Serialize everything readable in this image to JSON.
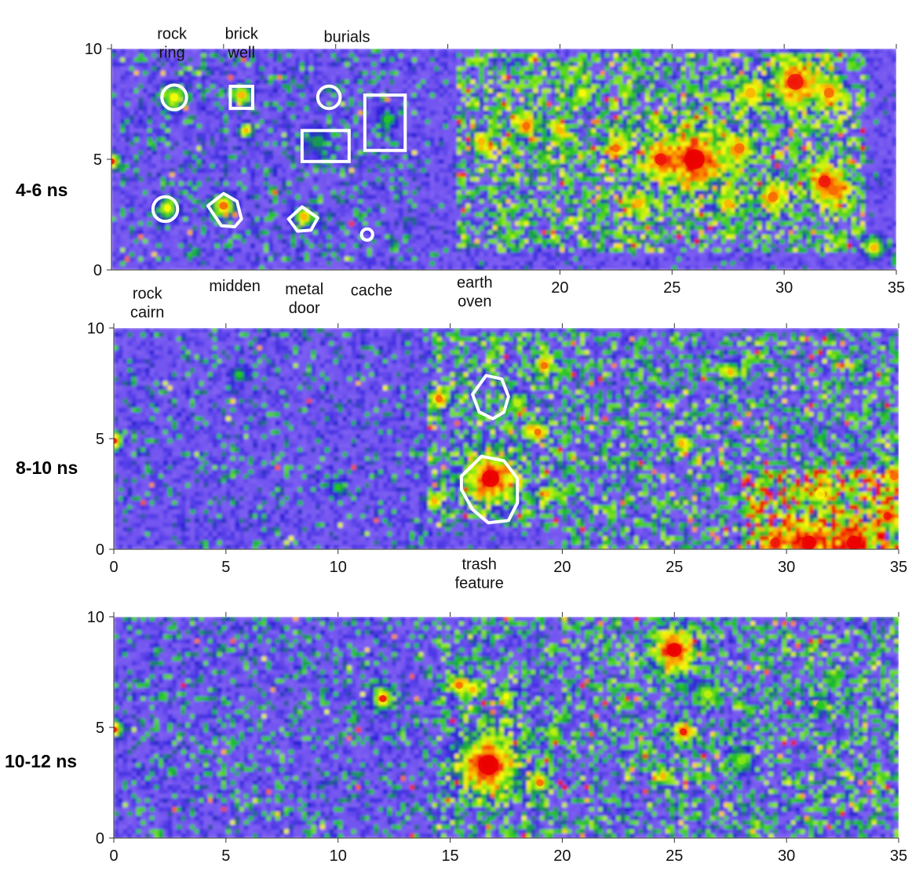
{
  "chart_data": [
    {
      "type": "heatmap",
      "depth_label": "4-6 ns",
      "x_range": [
        0,
        35
      ],
      "y_range": [
        0,
        10
      ],
      "x_ticks": [
        "20",
        "25",
        "30",
        "35"
      ],
      "x_tick_values": [
        20,
        25,
        30,
        35
      ],
      "y_ticks": [
        "10",
        "5",
        "0"
      ],
      "y_tick_values": [
        10,
        5,
        0
      ],
      "annotations": [
        {
          "lines": [
            "rock",
            "ring"
          ],
          "x": 2.7,
          "y": 10.45
        },
        {
          "lines": [
            "brick",
            "well"
          ],
          "x": 5.8,
          "y": 10.45
        },
        {
          "lines": [
            "burials"
          ],
          "x": 10.5,
          "y": 10.3
        },
        {
          "lines": [
            "rock",
            "cairn"
          ],
          "x": 1.6,
          "y": -1.3
        },
        {
          "lines": [
            "midden"
          ],
          "x": 5.5,
          "y": -0.95
        },
        {
          "lines": [
            "metal",
            "door"
          ],
          "x": 8.6,
          "y": -1.1
        },
        {
          "lines": [
            "cache"
          ],
          "x": 11.6,
          "y": -1.15
        },
        {
          "lines": [
            "earth",
            "oven"
          ],
          "x": 16.2,
          "y": -0.8
        }
      ],
      "outlines": [
        {
          "shape": "circle",
          "cx": 2.8,
          "cy": 7.8,
          "r": 0.55
        },
        {
          "shape": "rect",
          "x0": 5.3,
          "y0": 7.3,
          "x1": 6.3,
          "y1": 8.3
        },
        {
          "shape": "circle",
          "cx": 9.7,
          "cy": 7.8,
          "r": 0.5
        },
        {
          "shape": "rect",
          "x0": 8.5,
          "y0": 4.9,
          "x1": 10.6,
          "y1": 6.3
        },
        {
          "shape": "rect",
          "x0": 11.3,
          "y0": 5.4,
          "x1": 13.1,
          "y1": 7.9
        },
        {
          "shape": "circle",
          "cx": 2.4,
          "cy": 2.75,
          "r": 0.55
        },
        {
          "shape": "polygon",
          "points": [
            [
              4.3,
              2.9
            ],
            [
              5.0,
              3.45
            ],
            [
              5.6,
              3.1
            ],
            [
              5.8,
              2.3
            ],
            [
              5.5,
              1.95
            ],
            [
              4.9,
              2.0
            ]
          ]
        },
        {
          "shape": "polygon",
          "points": [
            [
              7.9,
              2.3
            ],
            [
              8.5,
              2.85
            ],
            [
              9.2,
              2.35
            ],
            [
              8.9,
              1.8
            ],
            [
              8.3,
              1.75
            ]
          ]
        },
        {
          "shape": "circle",
          "cx": 11.4,
          "cy": 1.6,
          "r": 0.25
        }
      ],
      "hot_spots": [
        {
          "x": 2.8,
          "y": 7.8,
          "level": 0.8,
          "r": 0.4
        },
        {
          "x": 5.8,
          "y": 7.9,
          "level": 0.85,
          "r": 0.35
        },
        {
          "x": 2.5,
          "y": 2.8,
          "level": 0.8,
          "r": 0.35
        },
        {
          "x": 5.0,
          "y": 2.9,
          "level": 0.9,
          "r": 0.4
        },
        {
          "x": 8.6,
          "y": 2.4,
          "level": 0.85,
          "r": 0.35
        },
        {
          "x": 12.3,
          "y": 6.8,
          "level": 0.6,
          "r": 0.35
        },
        {
          "x": 9.2,
          "y": 5.8,
          "level": 0.55,
          "r": 0.5
        },
        {
          "x": 6.0,
          "y": 6.3,
          "level": 0.85,
          "r": 0.25
        },
        {
          "x": 0.0,
          "y": 4.9,
          "level": 0.95,
          "r": 0.3
        },
        {
          "x": 18.5,
          "y": 6.5,
          "level": 0.9,
          "r": 0.4
        },
        {
          "x": 20.0,
          "y": 6.3,
          "level": 0.85,
          "r": 0.35
        },
        {
          "x": 16.5,
          "y": 5.8,
          "level": 0.85,
          "r": 0.35
        },
        {
          "x": 26.0,
          "y": 5.0,
          "level": 1.0,
          "r": 1.0
        },
        {
          "x": 24.5,
          "y": 5.0,
          "level": 0.95,
          "r": 0.6
        },
        {
          "x": 30.5,
          "y": 8.5,
          "level": 0.95,
          "r": 0.8
        },
        {
          "x": 32.0,
          "y": 8.0,
          "level": 0.9,
          "r": 0.5
        },
        {
          "x": 28.5,
          "y": 8.0,
          "level": 0.85,
          "r": 0.5
        },
        {
          "x": 31.8,
          "y": 4.0,
          "level": 0.95,
          "r": 0.6
        },
        {
          "x": 32.2,
          "y": 3.6,
          "level": 0.9,
          "r": 0.5
        },
        {
          "x": 29.5,
          "y": 3.3,
          "level": 0.9,
          "r": 0.5
        },
        {
          "x": 22.5,
          "y": 5.5,
          "level": 0.9,
          "r": 0.4
        },
        {
          "x": 28.0,
          "y": 5.5,
          "level": 0.9,
          "r": 0.5
        },
        {
          "x": 23.5,
          "y": 3.0,
          "level": 0.85,
          "r": 0.4
        },
        {
          "x": 27.5,
          "y": 3.0,
          "level": 0.85,
          "r": 0.4
        },
        {
          "x": 34.0,
          "y": 1.0,
          "level": 0.85,
          "r": 0.35
        },
        {
          "x": 21.0,
          "y": 8.0,
          "level": 0.8,
          "r": 0.35
        }
      ],
      "warm_zones": [
        {
          "x0": 15.5,
          "x1": 33.5,
          "y0": 0.8,
          "y1": 9.8,
          "density": 0.55
        },
        {
          "x0": 0.5,
          "x1": 13.5,
          "y0": 0.5,
          "y1": 9.8,
          "density": 0.15
        }
      ]
    },
    {
      "type": "heatmap",
      "depth_label": "8-10 ns",
      "x_range": [
        0,
        35
      ],
      "y_range": [
        0,
        10
      ],
      "x_ticks": [
        "0",
        "5",
        "10",
        "20",
        "25",
        "30",
        "35"
      ],
      "x_tick_values": [
        0,
        5,
        10,
        20,
        25,
        30,
        35
      ],
      "y_ticks": [
        "10",
        "5",
        "0"
      ],
      "y_tick_values": [
        10,
        5,
        0
      ],
      "annotations": [
        {
          "lines": [
            "trash",
            "feature"
          ],
          "x": 16.3,
          "y": -0.9
        }
      ],
      "outlines": [
        {
          "shape": "polygon",
          "points": [
            [
              16.0,
              7.0
            ],
            [
              16.6,
              7.85
            ],
            [
              17.3,
              7.7
            ],
            [
              17.6,
              6.9
            ],
            [
              17.4,
              6.2
            ],
            [
              16.9,
              5.9
            ],
            [
              16.3,
              6.2
            ]
          ]
        },
        {
          "shape": "polygon",
          "points": [
            [
              15.5,
              3.3
            ],
            [
              16.4,
              4.2
            ],
            [
              17.4,
              4.0
            ],
            [
              18.0,
              3.2
            ],
            [
              18.0,
              2.1
            ],
            [
              17.6,
              1.3
            ],
            [
              16.7,
              1.2
            ],
            [
              16.0,
              1.8
            ],
            [
              15.5,
              2.7
            ]
          ]
        }
      ],
      "hot_spots": [
        {
          "x": 16.8,
          "y": 3.2,
          "level": 1.0,
          "r": 0.85
        },
        {
          "x": 14.5,
          "y": 6.8,
          "level": 0.9,
          "r": 0.35
        },
        {
          "x": 18.9,
          "y": 5.3,
          "level": 0.9,
          "r": 0.35
        },
        {
          "x": 19.2,
          "y": 8.3,
          "level": 0.9,
          "r": 0.35
        },
        {
          "x": 18.0,
          "y": 6.6,
          "level": 0.75,
          "r": 0.35
        },
        {
          "x": 19.3,
          "y": 2.5,
          "level": 0.85,
          "r": 0.3
        },
        {
          "x": 14.3,
          "y": 2.2,
          "level": 0.85,
          "r": 0.3
        },
        {
          "x": 25.3,
          "y": 4.8,
          "level": 0.85,
          "r": 0.3
        },
        {
          "x": 27.5,
          "y": 8.0,
          "level": 0.85,
          "r": 0.3
        },
        {
          "x": 0.0,
          "y": 4.9,
          "level": 0.95,
          "r": 0.3
        },
        {
          "x": 31.0,
          "y": 0.3,
          "level": 1.0,
          "r": 0.7
        },
        {
          "x": 33.0,
          "y": 0.3,
          "level": 1.0,
          "r": 0.7
        },
        {
          "x": 29.5,
          "y": 0.3,
          "level": 0.95,
          "r": 0.5
        },
        {
          "x": 34.5,
          "y": 1.5,
          "level": 0.95,
          "r": 0.4
        },
        {
          "x": 34.8,
          "y": 3.3,
          "level": 0.9,
          "r": 0.4
        },
        {
          "x": 31.5,
          "y": 2.5,
          "level": 0.8,
          "r": 0.5
        },
        {
          "x": 5.6,
          "y": 7.9,
          "level": 0.6,
          "r": 0.3
        },
        {
          "x": 10.0,
          "y": 2.8,
          "level": 0.6,
          "r": 0.3
        }
      ],
      "warm_zones": [
        {
          "x0": 14.0,
          "x1": 20.0,
          "y0": 1.0,
          "y1": 9.8,
          "density": 0.45
        },
        {
          "x0": 20.0,
          "x1": 35.0,
          "y0": 0.0,
          "y1": 9.8,
          "density": 0.4
        },
        {
          "x0": 28.0,
          "x1": 35.0,
          "y0": 0.0,
          "y1": 3.5,
          "density": 0.7
        },
        {
          "x0": 0.5,
          "x1": 14.0,
          "y0": 0.0,
          "y1": 10.0,
          "density": 0.1
        }
      ]
    },
    {
      "type": "heatmap",
      "depth_label": "10-12 ns",
      "x_range": [
        0,
        35
      ],
      "y_range": [
        0,
        10
      ],
      "x_ticks": [
        "0",
        "5",
        "10",
        "15",
        "20",
        "25",
        "30",
        "35"
      ],
      "x_tick_values": [
        0,
        5,
        10,
        15,
        20,
        25,
        30,
        35
      ],
      "y_ticks": [
        "10",
        "5",
        "0"
      ],
      "y_tick_values": [
        10,
        5,
        0
      ],
      "annotations": [],
      "outlines": [],
      "hot_spots": [
        {
          "x": 16.7,
          "y": 3.3,
          "level": 1.0,
          "r": 1.0
        },
        {
          "x": 25.0,
          "y": 8.5,
          "level": 1.0,
          "r": 0.7
        },
        {
          "x": 12.0,
          "y": 6.3,
          "level": 0.95,
          "r": 0.35
        },
        {
          "x": 15.4,
          "y": 6.9,
          "level": 0.9,
          "r": 0.35
        },
        {
          "x": 16.0,
          "y": 6.7,
          "level": 0.85,
          "r": 0.3
        },
        {
          "x": 17.5,
          "y": 6.4,
          "level": 0.8,
          "r": 0.3
        },
        {
          "x": 19.0,
          "y": 2.5,
          "level": 0.9,
          "r": 0.35
        },
        {
          "x": 25.4,
          "y": 4.8,
          "level": 0.95,
          "r": 0.35
        },
        {
          "x": 24.5,
          "y": 2.8,
          "level": 0.85,
          "r": 0.3
        },
        {
          "x": 26.5,
          "y": 6.5,
          "level": 0.75,
          "r": 0.4
        },
        {
          "x": 28.0,
          "y": 3.5,
          "level": 0.7,
          "r": 0.4
        },
        {
          "x": 0.0,
          "y": 4.9,
          "level": 0.95,
          "r": 0.3
        },
        {
          "x": 19.6,
          "y": 4.8,
          "level": 0.75,
          "r": 0.3
        },
        {
          "x": 31.5,
          "y": 6.0,
          "level": 0.6,
          "r": 0.4
        }
      ],
      "warm_zones": [
        {
          "x0": 14.5,
          "x1": 35.0,
          "y0": 0.0,
          "y1": 10.0,
          "density": 0.38
        },
        {
          "x0": 0.5,
          "x1": 14.5,
          "y0": 0.0,
          "y1": 10.0,
          "density": 0.18
        }
      ]
    }
  ]
}
